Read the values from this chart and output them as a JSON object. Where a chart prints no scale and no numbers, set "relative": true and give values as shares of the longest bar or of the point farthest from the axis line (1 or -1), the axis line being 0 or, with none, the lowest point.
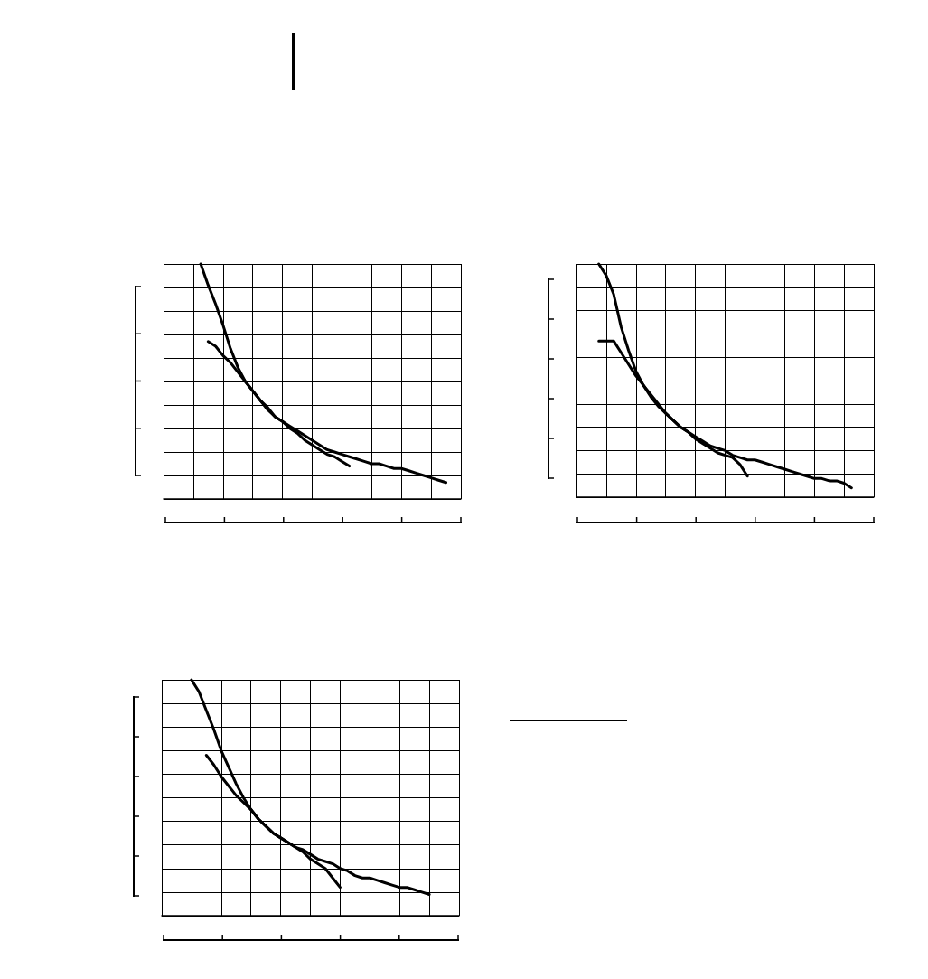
{
  "chart_data": [
    {
      "type": "line",
      "relative": true,
      "grid": true,
      "categories": [
        null,
        null,
        null,
        null,
        null,
        null,
        null,
        null,
        null,
        null,
        null,
        null,
        null,
        null,
        null,
        null,
        null,
        null,
        null,
        null,
        null,
        null,
        null,
        null,
        null,
        null,
        null,
        null,
        null,
        null,
        null,
        null,
        null,
        null,
        null,
        null,
        null,
        null,
        null,
        null,
        null
      ],
      "series": [
        {
          "color": "#000000",
          "values": [
            null,
            null,
            null,
            null,
            null,
            1.0,
            0.91,
            0.83,
            0.74,
            0.64,
            0.56,
            0.5,
            0.46,
            0.42,
            0.38,
            0.35,
            0.33,
            0.31,
            0.29,
            0.27,
            0.25,
            0.23,
            0.21,
            0.2,
            0.19,
            0.18,
            0.17,
            0.16,
            0.15,
            0.15,
            0.14,
            0.13,
            0.13,
            0.12,
            0.11,
            0.1,
            0.09,
            0.08,
            0.07,
            null,
            null
          ]
        },
        {
          "color": "#000000",
          "values": [
            null,
            null,
            null,
            null,
            null,
            null,
            0.67,
            0.65,
            0.61,
            0.58,
            0.54,
            0.5,
            0.46,
            0.42,
            0.39,
            0.35,
            0.33,
            0.3,
            0.28,
            0.25,
            0.23,
            0.21,
            0.19,
            0.18,
            0.16,
            0.14,
            null,
            null,
            null,
            null,
            null,
            null,
            null,
            null,
            null,
            null,
            null,
            null,
            null,
            null,
            null
          ]
        }
      ]
    },
    {
      "type": "line",
      "relative": true,
      "grid": true,
      "categories": [
        null,
        null,
        null,
        null,
        null,
        null,
        null,
        null,
        null,
        null,
        null,
        null,
        null,
        null,
        null,
        null,
        null,
        null,
        null,
        null,
        null,
        null,
        null,
        null,
        null,
        null,
        null,
        null,
        null,
        null,
        null,
        null,
        null,
        null,
        null,
        null,
        null,
        null,
        null,
        null,
        null
      ],
      "series": [
        {
          "color": "#000000",
          "values": [
            null,
            null,
            null,
            1.0,
            0.95,
            0.87,
            0.73,
            0.63,
            0.54,
            0.48,
            0.43,
            0.39,
            0.36,
            0.33,
            0.3,
            0.28,
            0.26,
            0.24,
            0.22,
            0.21,
            0.2,
            0.18,
            0.17,
            0.16,
            0.16,
            0.15,
            0.14,
            0.13,
            0.12,
            0.11,
            0.1,
            0.09,
            0.08,
            0.08,
            0.07,
            0.07,
            0.06,
            0.04,
            null,
            null,
            null
          ]
        },
        {
          "color": "#000000",
          "values": [
            null,
            null,
            null,
            0.67,
            0.67,
            0.67,
            0.62,
            0.57,
            0.52,
            0.48,
            0.44,
            0.4,
            0.36,
            0.33,
            0.3,
            0.28,
            0.25,
            0.23,
            0.21,
            0.19,
            0.18,
            0.17,
            0.14,
            0.09,
            null,
            null,
            null,
            null,
            null,
            null,
            null,
            null,
            null,
            null,
            null,
            null,
            null,
            null,
            null,
            null,
            null
          ]
        }
      ]
    },
    {
      "type": "line",
      "relative": true,
      "grid": true,
      "categories": [
        null,
        null,
        null,
        null,
        null,
        null,
        null,
        null,
        null,
        null,
        null,
        null,
        null,
        null,
        null,
        null,
        null,
        null,
        null,
        null,
        null,
        null,
        null,
        null,
        null,
        null,
        null,
        null,
        null,
        null,
        null,
        null,
        null,
        null,
        null,
        null,
        null,
        null,
        null,
        null,
        null
      ],
      "series": [
        {
          "color": "#000000",
          "values": [
            null,
            null,
            null,
            null,
            1.0,
            0.95,
            0.87,
            0.79,
            0.7,
            0.63,
            0.56,
            0.5,
            0.45,
            0.41,
            0.38,
            0.35,
            0.33,
            0.31,
            0.29,
            0.28,
            0.26,
            0.24,
            0.23,
            0.22,
            0.2,
            0.19,
            0.17,
            0.16,
            0.16,
            0.15,
            0.14,
            0.13,
            0.12,
            0.12,
            0.11,
            0.1,
            0.09,
            null,
            null,
            null,
            null
          ]
        },
        {
          "color": "#000000",
          "values": [
            null,
            null,
            null,
            null,
            null,
            null,
            0.68,
            0.64,
            0.59,
            0.55,
            0.51,
            0.48,
            0.45,
            0.41,
            0.38,
            0.35,
            0.33,
            0.31,
            0.29,
            0.27,
            0.24,
            0.22,
            0.2,
            0.16,
            0.12,
            null,
            null,
            null,
            null,
            null,
            null,
            null,
            null,
            null,
            null,
            null,
            null,
            null,
            null,
            null,
            null
          ]
        }
      ]
    }
  ]
}
